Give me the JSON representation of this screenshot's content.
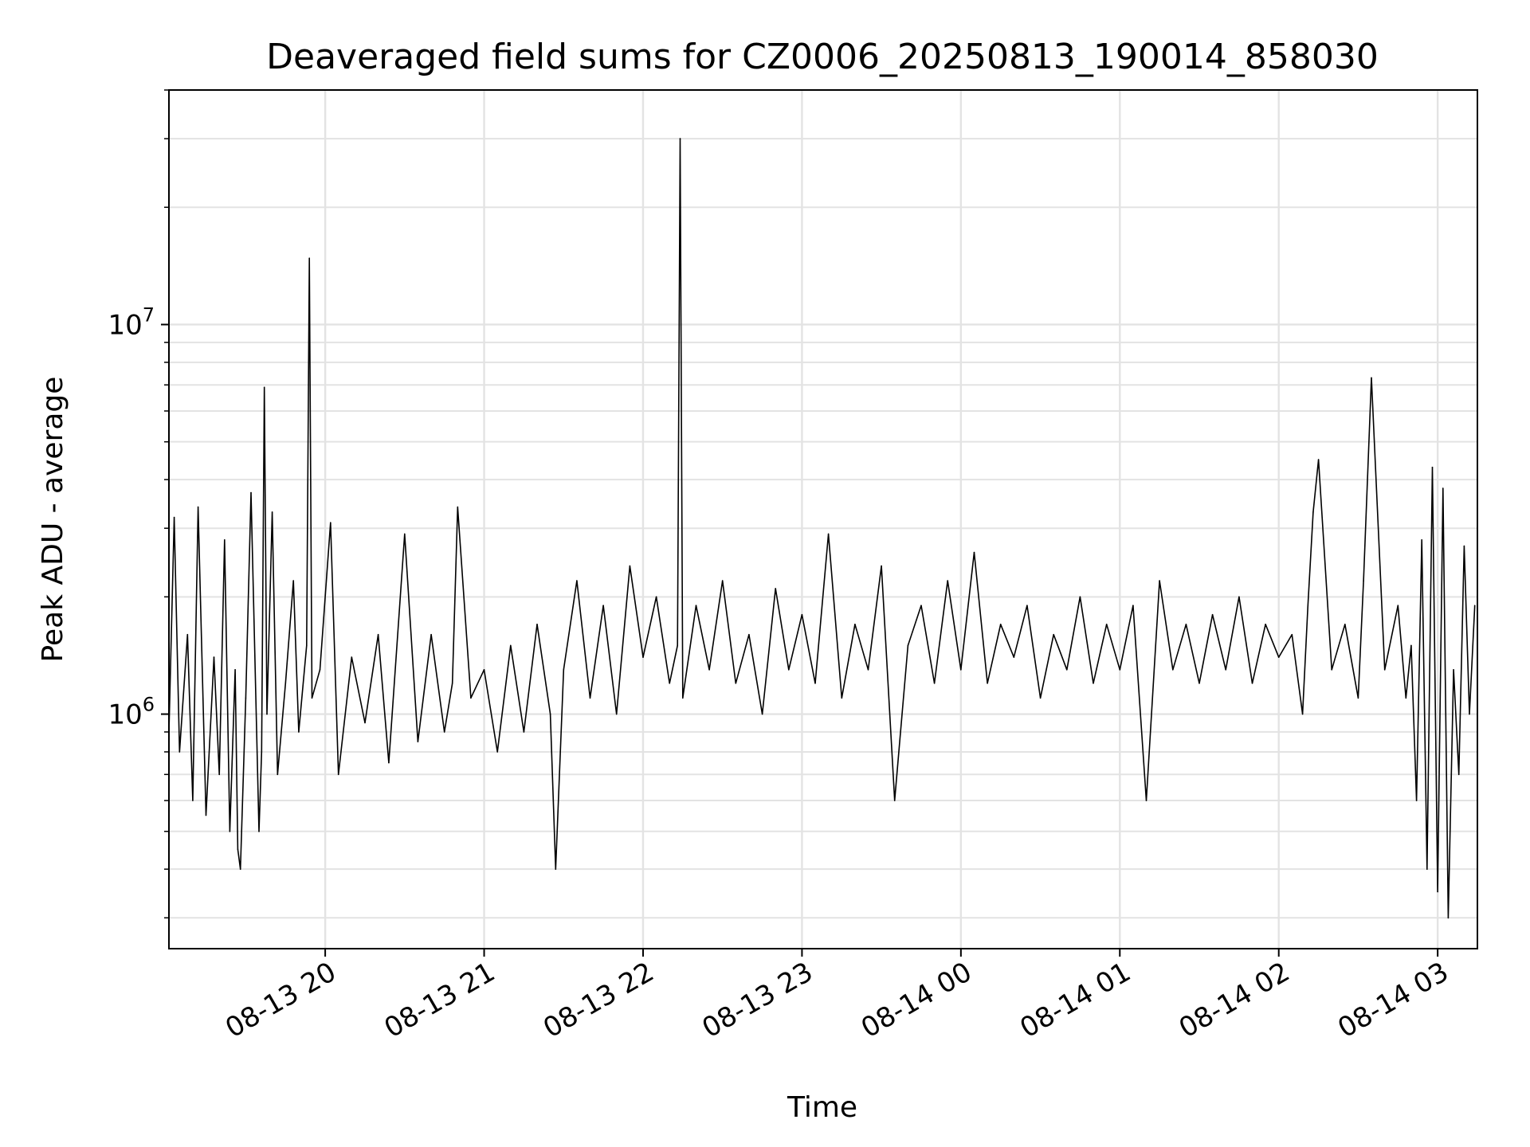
{
  "chart_data": {
    "type": "line",
    "title": "Deaveraged field sums for CZ0006_20250813_190014_858030",
    "xlabel": "Time",
    "ylabel": "Peak ADU - average",
    "x_range": [
      "2025-08-13 19:01",
      "2025-08-14 03:15"
    ],
    "y_scale": "log",
    "ylim": [
      250000,
      40000000
    ],
    "grid": true,
    "x_ticks": [
      {
        "value": "2025-08-13 20:00",
        "label": "08-13 20"
      },
      {
        "value": "2025-08-13 21:00",
        "label": "08-13 21"
      },
      {
        "value": "2025-08-13 22:00",
        "label": "08-13 22"
      },
      {
        "value": "2025-08-13 23:00",
        "label": "08-13 23"
      },
      {
        "value": "2025-08-14 00:00",
        "label": "08-14 00"
      },
      {
        "value": "2025-08-14 01:00",
        "label": "08-14 01"
      },
      {
        "value": "2025-08-14 02:00",
        "label": "08-14 02"
      },
      {
        "value": "2025-08-14 03:00",
        "label": "08-14 03"
      }
    ],
    "y_ticks": [
      {
        "value": 1000000,
        "base": "10",
        "exponent": "6"
      },
      {
        "value": 10000000,
        "base": "10",
        "exponent": "7"
      }
    ],
    "line_color": "#000000",
    "series": [
      {
        "x": [
          "2025-08-13 19:01",
          "2025-08-13 19:03",
          "2025-08-13 19:05",
          "2025-08-13 19:08",
          "2025-08-13 19:10",
          "2025-08-13 19:12",
          "2025-08-13 19:15",
          "2025-08-13 19:18",
          "2025-08-13 19:20",
          "2025-08-13 19:22",
          "2025-08-13 19:24",
          "2025-08-13 19:26",
          "2025-08-13 19:27",
          "2025-08-13 19:28",
          "2025-08-13 19:30",
          "2025-08-13 19:32",
          "2025-08-13 19:35",
          "2025-08-13 19:36",
          "2025-08-13 19:37",
          "2025-08-13 19:38",
          "2025-08-13 19:40",
          "2025-08-13 19:42",
          "2025-08-13 19:45",
          "2025-08-13 19:48",
          "2025-08-13 19:50",
          "2025-08-13 19:53",
          "2025-08-13 19:54",
          "2025-08-13 19:55",
          "2025-08-13 19:58",
          "2025-08-13 20:02",
          "2025-08-13 20:05",
          "2025-08-13 20:10",
          "2025-08-13 20:15",
          "2025-08-13 20:20",
          "2025-08-13 20:24",
          "2025-08-13 20:30",
          "2025-08-13 20:35",
          "2025-08-13 20:40",
          "2025-08-13 20:45",
          "2025-08-13 20:48",
          "2025-08-13 20:50",
          "2025-08-13 20:55",
          "2025-08-13 21:00",
          "2025-08-13 21:05",
          "2025-08-13 21:10",
          "2025-08-13 21:15",
          "2025-08-13 21:20",
          "2025-08-13 21:25",
          "2025-08-13 21:27",
          "2025-08-13 21:30",
          "2025-08-13 21:35",
          "2025-08-13 21:40",
          "2025-08-13 21:45",
          "2025-08-13 21:50",
          "2025-08-13 21:55",
          "2025-08-13 22:00",
          "2025-08-13 22:05",
          "2025-08-13 22:10",
          "2025-08-13 22:13",
          "2025-08-13 22:14",
          "2025-08-13 22:15",
          "2025-08-13 22:20",
          "2025-08-13 22:25",
          "2025-08-13 22:30",
          "2025-08-13 22:35",
          "2025-08-13 22:40",
          "2025-08-13 22:45",
          "2025-08-13 22:50",
          "2025-08-13 22:55",
          "2025-08-13 23:00",
          "2025-08-13 23:05",
          "2025-08-13 23:10",
          "2025-08-13 23:15",
          "2025-08-13 23:20",
          "2025-08-13 23:25",
          "2025-08-13 23:30",
          "2025-08-13 23:35",
          "2025-08-13 23:40",
          "2025-08-13 23:45",
          "2025-08-13 23:50",
          "2025-08-13 23:55",
          "2025-08-14 00:00",
          "2025-08-14 00:05",
          "2025-08-14 00:10",
          "2025-08-14 00:15",
          "2025-08-14 00:20",
          "2025-08-14 00:25",
          "2025-08-14 00:30",
          "2025-08-14 00:35",
          "2025-08-14 00:40",
          "2025-08-14 00:45",
          "2025-08-14 00:50",
          "2025-08-14 00:55",
          "2025-08-14 01:00",
          "2025-08-14 01:05",
          "2025-08-14 01:10",
          "2025-08-14 01:15",
          "2025-08-14 01:20",
          "2025-08-14 01:25",
          "2025-08-14 01:30",
          "2025-08-14 01:35",
          "2025-08-14 01:40",
          "2025-08-14 01:45",
          "2025-08-14 01:50",
          "2025-08-14 01:55",
          "2025-08-14 02:00",
          "2025-08-14 02:05",
          "2025-08-14 02:09",
          "2025-08-14 02:11",
          "2025-08-14 02:13",
          "2025-08-14 02:15",
          "2025-08-14 02:20",
          "2025-08-14 02:25",
          "2025-08-14 02:30",
          "2025-08-14 02:32",
          "2025-08-14 02:35",
          "2025-08-14 02:40",
          "2025-08-14 02:45",
          "2025-08-14 02:48",
          "2025-08-14 02:50",
          "2025-08-14 02:52",
          "2025-08-14 02:54",
          "2025-08-14 02:56",
          "2025-08-14 02:58",
          "2025-08-14 03:00",
          "2025-08-14 03:02",
          "2025-08-14 03:04",
          "2025-08-14 03:06",
          "2025-08-14 03:08",
          "2025-08-14 03:10",
          "2025-08-14 03:12",
          "2025-08-14 03:14"
        ],
        "y": [
          900000,
          3200000,
          800000,
          1600000,
          600000,
          3400000,
          550000,
          1400000,
          700000,
          2800000,
          500000,
          1300000,
          450000,
          400000,
          1100000,
          3700000,
          500000,
          800000,
          6900000,
          1000000,
          3300000,
          700000,
          1200000,
          2200000,
          900000,
          1500000,
          14800000,
          1100000,
          1300000,
          3100000,
          700000,
          1400000,
          950000,
          1600000,
          750000,
          2900000,
          850000,
          1600000,
          900000,
          1200000,
          3400000,
          1100000,
          1300000,
          800000,
          1500000,
          900000,
          1700000,
          1000000,
          400000,
          1300000,
          2200000,
          1100000,
          1900000,
          1000000,
          2400000,
          1400000,
          2000000,
          1200000,
          1500000,
          30000000,
          1100000,
          1900000,
          1300000,
          2200000,
          1200000,
          1600000,
          1000000,
          2100000,
          1300000,
          1800000,
          1200000,
          2900000,
          1100000,
          1700000,
          1300000,
          2400000,
          600000,
          1500000,
          1900000,
          1200000,
          2200000,
          1300000,
          2600000,
          1200000,
          1700000,
          1400000,
          1900000,
          1100000,
          1600000,
          1300000,
          2000000,
          1200000,
          1700000,
          1300000,
          1900000,
          600000,
          2200000,
          1300000,
          1700000,
          1200000,
          1800000,
          1300000,
          2000000,
          1200000,
          1700000,
          1400000,
          1600000,
          1000000,
          1900000,
          3300000,
          4500000,
          1300000,
          1700000,
          1100000,
          2200000,
          7300000,
          1300000,
          1900000,
          1100000,
          1500000,
          600000,
          2800000,
          400000,
          4300000,
          350000,
          3800000,
          300000,
          1300000,
          700000,
          2700000,
          1000000,
          1900000
        ]
      }
    ]
  }
}
